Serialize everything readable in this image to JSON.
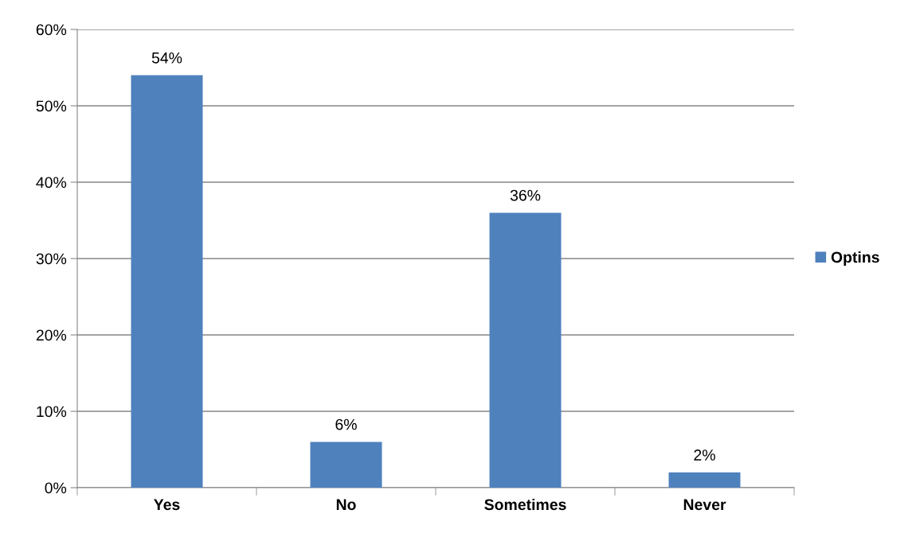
{
  "chart_data": {
    "type": "bar",
    "categories": [
      "Yes",
      "No",
      "Sometimes",
      "Never"
    ],
    "series": [
      {
        "name": "Optins",
        "color": "#4f81bd",
        "values": [
          54,
          6,
          36,
          2
        ],
        "value_labels": [
          "54%",
          "6%",
          "36%",
          "2%"
        ]
      }
    ],
    "ylim": [
      0,
      60
    ],
    "yticks": [
      {
        "value": 0,
        "label": "0%"
      },
      {
        "value": 10,
        "label": "10%"
      },
      {
        "value": 20,
        "label": "20%"
      },
      {
        "value": 30,
        "label": "30%"
      },
      {
        "value": 40,
        "label": "40%"
      },
      {
        "value": 50,
        "label": "50%"
      },
      {
        "value": 60,
        "label": "60%"
      }
    ],
    "grid": "y",
    "legend": "right"
  }
}
